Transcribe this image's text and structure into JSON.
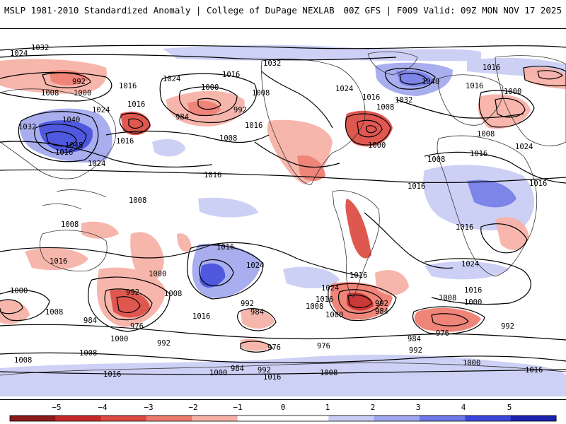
{
  "header": {
    "left_title": "MSLP 1981-2010 Standardized Anomaly | College of DuPage NEXLAB",
    "right_title": "00Z GFS | F009 Valid: 09Z MON NOV 17 2025"
  },
  "contour_labels": [
    {
      "text": "1032"
    },
    {
      "text": "1024"
    },
    {
      "text": "992"
    },
    {
      "text": "1008"
    },
    {
      "text": "1000"
    },
    {
      "text": "1016"
    },
    {
      "text": "1024"
    },
    {
      "text": "1032"
    },
    {
      "text": "1016"
    },
    {
      "text": "1008"
    },
    {
      "text": "1000"
    },
    {
      "text": "992"
    },
    {
      "text": "984"
    },
    {
      "text": "1016"
    },
    {
      "text": "1008"
    },
    {
      "text": "1016"
    },
    {
      "text": "1024"
    },
    {
      "text": "1016"
    },
    {
      "text": "1008"
    },
    {
      "text": "1000"
    },
    {
      "text": "1040"
    },
    {
      "text": "1032"
    },
    {
      "text": "1016"
    },
    {
      "text": "1016"
    },
    {
      "text": "1000"
    },
    {
      "text": "1008"
    },
    {
      "text": "1024"
    },
    {
      "text": "1040"
    },
    {
      "text": "1032"
    },
    {
      "text": "1016"
    },
    {
      "text": "1048"
    },
    {
      "text": "1024"
    },
    {
      "text": "1016"
    },
    {
      "text": "1016"
    },
    {
      "text": "1008"
    },
    {
      "text": "1024"
    },
    {
      "text": "1016"
    },
    {
      "text": "1016"
    },
    {
      "text": "1008"
    },
    {
      "text": "1008"
    },
    {
      "text": "1016"
    },
    {
      "text": "1016"
    },
    {
      "text": "1016"
    },
    {
      "text": "1024"
    },
    {
      "text": "1000"
    },
    {
      "text": "992"
    },
    {
      "text": "1008"
    },
    {
      "text": "1000"
    },
    {
      "text": "1008"
    },
    {
      "text": "984"
    },
    {
      "text": "976"
    },
    {
      "text": "1016"
    },
    {
      "text": "992"
    },
    {
      "text": "984"
    },
    {
      "text": "1008"
    },
    {
      "text": "1016"
    },
    {
      "text": "1024"
    },
    {
      "text": "1000"
    },
    {
      "text": "1016"
    },
    {
      "text": "992"
    },
    {
      "text": "984"
    },
    {
      "text": "1024"
    },
    {
      "text": "1008"
    },
    {
      "text": "1016"
    },
    {
      "text": "1000"
    },
    {
      "text": "992"
    },
    {
      "text": "976"
    },
    {
      "text": "1000"
    },
    {
      "text": "992"
    },
    {
      "text": "1008"
    },
    {
      "text": "976"
    },
    {
      "text": "976"
    },
    {
      "text": "984"
    },
    {
      "text": "992"
    },
    {
      "text": "1000"
    },
    {
      "text": "1008"
    },
    {
      "text": "1016"
    },
    {
      "text": "1016"
    },
    {
      "text": "1008"
    },
    {
      "text": "1016"
    },
    {
      "text": "1000"
    },
    {
      "text": "984"
    },
    {
      "text": "992"
    },
    {
      "text": "1016"
    }
  ],
  "colorbar": {
    "ticks": [
      "−5",
      "−4",
      "−3",
      "−2",
      "−1",
      "0",
      "1",
      "2",
      "3",
      "4",
      "5"
    ],
    "colors": [
      "#8b1a1a",
      "#c62828",
      "#dd4a42",
      "#ee7a6e",
      "#f7b0a5",
      "#ffffff",
      "#ffffff",
      "#c8ccf4",
      "#a0a6ee",
      "#6f78e6",
      "#3c46dc",
      "#1c22b0"
    ]
  }
}
